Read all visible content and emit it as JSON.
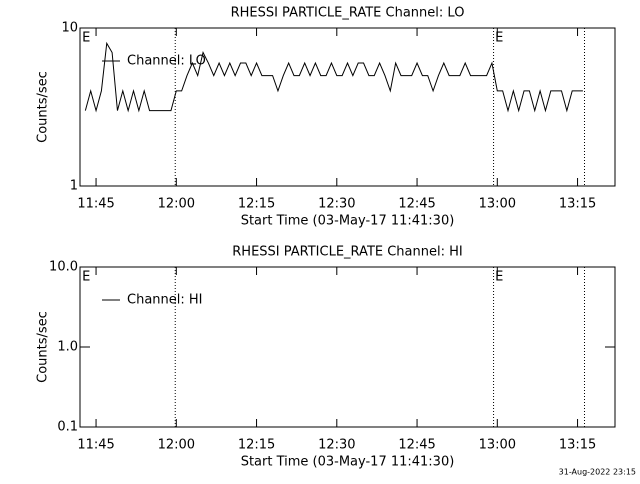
{
  "chart_data": [
    {
      "type": "line",
      "title": "RHESSI PARTICLE_RATE Channel: LO",
      "xlabel": "Start Time (03-May-17 11:41:30)",
      "ylabel": "Counts/sec",
      "log_y": true,
      "ylim": [
        1,
        10
      ],
      "yticks": [
        1,
        10
      ],
      "xlim": [
        702,
        802
      ],
      "xticks": [
        {
          "value": 705,
          "label": "11:45"
        },
        {
          "value": 720,
          "label": "12:00"
        },
        {
          "value": 735,
          "label": "12:15"
        },
        {
          "value": 750,
          "label": "12:30"
        },
        {
          "value": 765,
          "label": "12:45"
        },
        {
          "value": 780,
          "label": "13:00"
        },
        {
          "value": 795,
          "label": "13:15"
        }
      ],
      "vlines": [
        719.8,
        779.3,
        796.3
      ],
      "annotations": [
        {
          "text": "E",
          "x": 702.4
        },
        {
          "text": "E",
          "x": 779.6
        }
      ],
      "series": [
        {
          "name": "Channel: LO",
          "color": "#000000",
          "x": [
            703,
            704,
            705,
            706,
            707,
            708,
            709,
            710,
            711,
            712,
            713,
            714,
            715,
            716,
            717,
            718,
            719,
            720,
            721,
            722,
            723,
            724,
            725,
            726,
            727,
            728,
            729,
            730,
            731,
            732,
            733,
            734,
            735,
            736,
            737,
            738,
            739,
            740,
            741,
            742,
            743,
            744,
            745,
            746,
            747,
            748,
            749,
            750,
            751,
            752,
            753,
            754,
            755,
            756,
            757,
            758,
            759,
            760,
            761,
            762,
            763,
            764,
            765,
            766,
            767,
            768,
            769,
            770,
            771,
            772,
            773,
            774,
            775,
            776,
            777,
            778,
            779,
            780,
            781,
            782,
            783,
            784,
            785,
            786,
            787,
            788,
            789,
            790,
            791,
            792,
            793,
            794,
            795,
            796
          ],
          "values": [
            3,
            4,
            3,
            4,
            8,
            7,
            3,
            4,
            3,
            4,
            3,
            4,
            3,
            3,
            3,
            3,
            3,
            4,
            4,
            5,
            6,
            5,
            7,
            6,
            5,
            6,
            5,
            6,
            5,
            6,
            6,
            5,
            6,
            5,
            5,
            5,
            4,
            5,
            6,
            5,
            5,
            6,
            5,
            6,
            5,
            5,
            6,
            5,
            5,
            6,
            5,
            6,
            6,
            5,
            5,
            6,
            5,
            4,
            6,
            5,
            5,
            5,
            6,
            5,
            5,
            4,
            5,
            6,
            5,
            5,
            5,
            6,
            5,
            5,
            5,
            5,
            6,
            4,
            4,
            3,
            4,
            3,
            4,
            4,
            3,
            4,
            3,
            4,
            4,
            4,
            3,
            4,
            4,
            4
          ]
        }
      ]
    },
    {
      "type": "line",
      "title": "RHESSI PARTICLE_RATE Channel: HI",
      "xlabel": "Start Time (03-May-17 11:41:30)",
      "ylabel": "Counts/sec",
      "log_y": true,
      "ylim": [
        0.1,
        10
      ],
      "yticks": [
        0.1,
        {
          "value": 1,
          "label": "1.0"
        },
        {
          "value": 10,
          "label": "10.0"
        }
      ],
      "xlim": [
        702,
        802
      ],
      "xticks": [
        {
          "value": 705,
          "label": "11:45"
        },
        {
          "value": 720,
          "label": "12:00"
        },
        {
          "value": 735,
          "label": "12:15"
        },
        {
          "value": 750,
          "label": "12:30"
        },
        {
          "value": 765,
          "label": "12:45"
        },
        {
          "value": 780,
          "label": "13:00"
        },
        {
          "value": 795,
          "label": "13:15"
        }
      ],
      "vlines": [
        719.8,
        779.3,
        796.3
      ],
      "annotations": [
        {
          "text": "E",
          "x": 702.4
        },
        {
          "text": "E",
          "x": 779.6
        }
      ],
      "series": [
        {
          "name": "Channel: HI",
          "color": "#000000",
          "x": [],
          "values": []
        }
      ]
    }
  ],
  "footer": "31-Aug-2022 23:15"
}
